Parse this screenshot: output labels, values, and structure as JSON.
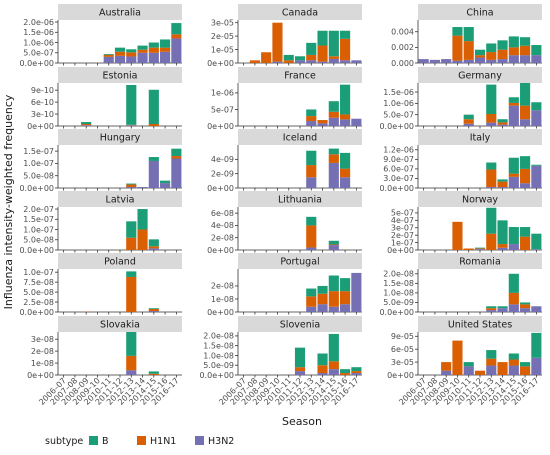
{
  "chart_data": {
    "type": "bar",
    "stacked": true,
    "layout": "facet-grid 6 rows x 3 columns, free y scales",
    "xlabel": "Season",
    "ylabel": "Influenza intensity-weighted frequency",
    "legend": {
      "title": "subtype",
      "position": "bottom-left",
      "items": [
        "B",
        "H1N1",
        "H3N2"
      ]
    },
    "colors": {
      "B": "#1b9e77",
      "H1N1": "#d95f02",
      "H3N2": "#7570b3",
      "strip": "#d9d9d9",
      "axis": "#333333"
    },
    "categories": [
      "2006–07",
      "2007–08",
      "2008–09",
      "2009–10",
      "2010–11",
      "2011–12",
      "2012–13",
      "2013–14",
      "2014–15",
      "2015–16",
      "2016–17"
    ],
    "stack_order": [
      "H3N2",
      "H1N1",
      "B"
    ],
    "panels": [
      {
        "country": "Australia",
        "yticks": [
          "0.0e+00",
          "5.0e-07",
          "1.0e-06",
          "1.5e-06",
          "2.0e-06"
        ],
        "ytick_values": [
          0,
          5e-07,
          1e-06,
          1.5e-06,
          2e-06
        ],
        "ylim": [
          0,
          2.1e-06
        ],
        "H3N2": [
          0,
          0,
          0,
          0,
          3e-07,
          3.5e-07,
          3.2e-07,
          5e-07,
          5e-07,
          5.5e-07,
          1.2e-06
        ],
        "H1N1": [
          0,
          0,
          0,
          0,
          1e-07,
          2e-07,
          2e-07,
          1.5e-07,
          2.5e-07,
          2e-07,
          2e-07
        ],
        "B": [
          0,
          0,
          0,
          0,
          4e-08,
          2e-07,
          1.5e-07,
          2e-07,
          2.5e-07,
          4e-07,
          5.5e-07
        ]
      },
      {
        "country": "Canada",
        "yticks": [
          "0e+00",
          "1e-05",
          "2e-05",
          "3e-05"
        ],
        "ytick_values": [
          0,
          1e-05,
          2e-05,
          3e-05
        ],
        "ylim": [
          0,
          3.2e-05
        ],
        "H3N2": [
          0,
          0,
          0,
          1e-06,
          0,
          2e-06,
          2e-06,
          1e-06,
          3e-06,
          2e-06,
          2e-06
        ],
        "H1N1": [
          0,
          2e-06,
          8e-06,
          2.9e-05,
          2e-06,
          0,
          4e-06,
          1.2e-05,
          2e-06,
          1.6e-05,
          0
        ],
        "B": [
          0,
          0,
          0,
          0,
          4e-06,
          3e-06,
          9e-06,
          1.1e-05,
          1.9e-05,
          6e-06,
          0
        ]
      },
      {
        "country": "China",
        "yticks": [
          "0.000",
          "0.002",
          "0.004"
        ],
        "ytick_values": [
          0,
          0.002,
          0.004
        ],
        "ylim": [
          0,
          0.0055
        ],
        "H3N2": [
          0.0005,
          0.0004,
          0.0005,
          0.0003,
          0.0004,
          0.0007,
          0.0004,
          0.0005,
          0.001,
          0.001,
          0.001
        ],
        "H1N1": [
          0,
          0,
          0,
          0.0032,
          0.0024,
          0.0003,
          0.001,
          0.0012,
          0.001,
          0.0012,
          0
        ],
        "B": [
          0,
          0,
          0,
          0.0011,
          0.0018,
          0.0007,
          0.0011,
          0.0012,
          0.0014,
          0.0011,
          0.0013
        ]
      },
      {
        "country": "Estonia",
        "yticks": [
          "0e+00",
          "3e-10",
          "6e-10",
          "9e-10"
        ],
        "ytick_values": [
          0,
          3e-10,
          6e-10,
          9e-10
        ],
        "ylim": [
          0,
          1.08e-09
        ],
        "H3N2": [
          0,
          0,
          2e-11,
          0,
          0,
          0,
          2e-11,
          0,
          0,
          0,
          0
        ],
        "H1N1": [
          0,
          0,
          3e-11,
          0,
          0,
          0,
          1e-11,
          0,
          5e-11,
          0,
          0
        ],
        "B": [
          0,
          0,
          5e-11,
          0,
          0,
          0,
          1e-09,
          0,
          8.6e-10,
          0,
          0
        ]
      },
      {
        "country": "France",
        "yticks": [
          "0e+00",
          "5e-07",
          "1e-06"
        ],
        "ytick_values": [
          0,
          5e-07,
          1e-06
        ],
        "ylim": [
          0,
          1.3e-06
        ],
        "H3N2": [
          0,
          0,
          0,
          0,
          0,
          0,
          1.5e-07,
          8e-08,
          2.5e-07,
          2e-07,
          2.2e-07
        ],
        "H1N1": [
          0,
          0,
          0,
          0,
          0,
          0,
          1.5e-07,
          1e-07,
          1.8e-07,
          1.5e-07,
          0
        ],
        "B": [
          0,
          0,
          0,
          0,
          0,
          0,
          2e-07,
          0,
          3.2e-07,
          9e-07,
          0
        ]
      },
      {
        "country": "Germany",
        "yticks": [
          "0.0e+00",
          "5.0e-07",
          "1.0e-06",
          "1.5e-06"
        ],
        "ytick_values": [
          0,
          5e-07,
          1e-06,
          1.5e-06
        ],
        "ylim": [
          0,
          1.9e-06
        ],
        "H3N2": [
          0,
          0,
          0,
          0,
          1e-07,
          0,
          1.5e-07,
          6e-08,
          9e-07,
          3e-07,
          7e-07
        ],
        "H1N1": [
          0,
          0,
          0,
          0,
          2e-07,
          0,
          3.8e-07,
          1e-07,
          1.2e-07,
          6e-07,
          0
        ],
        "B": [
          0,
          0,
          0,
          0,
          2e-07,
          0,
          1.3e-06,
          1.4e-07,
          2.5e-07,
          1e-06,
          3.5e-07
        ]
      },
      {
        "country": "Hungary",
        "yticks": [
          "0.0e+00",
          "5.0e-08",
          "1.0e-07",
          "1.5e-07"
        ],
        "ytick_values": [
          0,
          5e-08,
          1e-07,
          1.5e-07
        ],
        "ylim": [
          0,
          1.75e-07
        ],
        "H3N2": [
          0,
          0,
          0,
          0,
          0,
          0,
          4e-09,
          4e-09,
          1.1e-07,
          2e-08,
          1.2e-07
        ],
        "H1N1": [
          0,
          0,
          0,
          0,
          0,
          0,
          1e-08,
          0,
          0,
          0,
          1e-08
        ],
        "B": [
          0,
          0,
          0,
          0,
          0,
          0,
          4e-09,
          0,
          1.6e-08,
          1e-08,
          3e-08
        ]
      },
      {
        "country": "Iceland",
        "yticks": [
          "0e+00",
          "2e-09",
          "4e-09"
        ],
        "ytick_values": [
          0,
          2e-09,
          4e-09
        ],
        "ylim": [
          0,
          6e-09
        ],
        "H3N2": [
          0,
          0,
          0,
          0,
          0,
          0,
          1.5e-09,
          0,
          3.5e-09,
          1.5e-09,
          0
        ],
        "H1N1": [
          0,
          0,
          0,
          0,
          0,
          0,
          1.7e-09,
          0,
          1.2e-09,
          1.2e-09,
          0
        ],
        "B": [
          0,
          0,
          0,
          0,
          0,
          0,
          2e-09,
          0,
          8e-10,
          2.2e-09,
          0
        ]
      },
      {
        "country": "Italy",
        "yticks": [
          "0.0e+00",
          "3.0e-07",
          "6.0e-07",
          "9.0e-07",
          "1.2e-06"
        ],
        "ytick_values": [
          0,
          3e-07,
          6e-07,
          9e-07,
          1.2e-06
        ],
        "ylim": [
          0,
          1.35e-06
        ],
        "H3N2": [
          0,
          0,
          0,
          0,
          0,
          0,
          3e-08,
          3e-08,
          3.5e-07,
          1.5e-07,
          7e-07
        ],
        "H1N1": [
          0,
          0,
          0,
          0,
          0,
          0,
          5.5e-07,
          1.7e-07,
          1e-07,
          4.5e-07,
          0
        ],
        "B": [
          0,
          0,
          0,
          0,
          0,
          0,
          2.2e-07,
          7e-08,
          5e-07,
          4e-07,
          3e-08
        ]
      },
      {
        "country": "Latvia",
        "yticks": [
          "0.0e+00",
          "5.0e-08",
          "1.0e-07",
          "1.5e-07",
          "2.0e-07"
        ],
        "ytick_values": [
          0,
          5e-08,
          1e-07,
          1.5e-07,
          2e-07
        ],
        "ylim": [
          0,
          2.1e-07
        ],
        "H3N2": [
          0,
          0,
          0,
          0,
          0,
          0,
          0,
          0,
          8e-09,
          0,
          0
        ],
        "H1N1": [
          0,
          0,
          0,
          0,
          0,
          1e-09,
          6e-08,
          1e-07,
          1e-08,
          0,
          0
        ],
        "B": [
          0,
          0,
          0,
          0,
          0,
          1e-09,
          8e-08,
          1e-07,
          3.4e-08,
          0,
          0
        ]
      },
      {
        "country": "Lithuania",
        "yticks": [
          "0e+00",
          "2e-08",
          "4e-08",
          "6e-08"
        ],
        "ytick_values": [
          0,
          2e-08,
          4e-08,
          6e-08
        ],
        "ylim": [
          0,
          7e-08
        ],
        "H3N2": [
          0,
          0,
          0,
          0,
          0,
          0,
          4e-09,
          0,
          8e-09,
          0,
          0
        ],
        "H1N1": [
          0,
          0,
          0,
          0,
          0,
          0,
          3.6e-08,
          0,
          1e-09,
          0,
          0
        ],
        "B": [
          0,
          0,
          0,
          0,
          0,
          0,
          1.4e-08,
          0,
          6e-09,
          0,
          0
        ]
      },
      {
        "country": "Norway",
        "yticks": [
          "0e+00",
          "1e-07",
          "2e-07",
          "3e-07",
          "4e-07",
          "5e-07"
        ],
        "ytick_values": [
          0,
          1e-07,
          2e-07,
          3e-07,
          4e-07,
          5e-07
        ],
        "ylim": [
          0,
          5.8e-07
        ],
        "H3N2": [
          0,
          0,
          0,
          0,
          0,
          1.2e-08,
          0,
          3e-08,
          8e-08,
          0,
          1e-08
        ],
        "H1N1": [
          0,
          0,
          0,
          3.8e-07,
          2e-08,
          1e-08,
          2.2e-07,
          5e-08,
          0,
          1.8e-07,
          0
        ],
        "B": [
          0,
          0,
          0,
          0,
          0,
          1e-08,
          3.5e-07,
          3.2e-07,
          2.3e-07,
          1.3e-07,
          2.1e-07
        ]
      },
      {
        "country": "Poland",
        "yticks": [
          "0.0e+00",
          "2.5e-08",
          "5.0e-08",
          "7.5e-08",
          "1.0e-07"
        ],
        "ytick_values": [
          0,
          2.5e-08,
          5e-08,
          7.5e-08,
          1e-07
        ],
        "ylim": [
          0,
          1.08e-07
        ],
        "H3N2": [
          0,
          0,
          0,
          0,
          0,
          0,
          0,
          0,
          2.5e-09,
          0,
          0
        ],
        "H1N1": [
          0,
          0,
          5e-10,
          0,
          0,
          0,
          8.8e-08,
          0,
          5e-09,
          0,
          0
        ],
        "B": [
          0,
          0,
          0,
          0,
          0,
          0,
          1.4e-08,
          0,
          2e-09,
          0,
          0
        ]
      },
      {
        "country": "Portugal",
        "yticks": [
          "0e+00",
          "1e-08",
          "2e-08"
        ],
        "ytick_values": [
          0,
          1e-08,
          2e-08
        ],
        "ylim": [
          0,
          3.3e-08
        ],
        "H3N2": [
          0,
          0,
          0,
          0,
          0,
          0,
          4e-09,
          6e-09,
          4e-09,
          6e-09,
          3e-08
        ],
        "H1N1": [
          0,
          0,
          0,
          0,
          0,
          0,
          8e-09,
          8e-09,
          1.2e-08,
          1e-08,
          0
        ],
        "B": [
          0,
          0,
          0,
          0,
          0,
          0,
          6e-09,
          6e-09,
          1.2e-08,
          1e-08,
          0
        ]
      },
      {
        "country": "Romania",
        "yticks": [
          "0.0e+00",
          "5.0e-09",
          "1.0e-08",
          "1.5e-08",
          "2.0e-08"
        ],
        "ytick_values": [
          0,
          5e-09,
          1e-08,
          1.5e-08,
          2e-08
        ],
        "ylim": [
          0,
          2.25e-08
        ],
        "H3N2": [
          0,
          0,
          0,
          0,
          0,
          0,
          1e-09,
          2e-09,
          4e-09,
          2e-09,
          3e-09
        ],
        "H1N1": [
          0,
          0,
          0,
          0,
          0,
          0,
          1e-09,
          0,
          6e-09,
          2e-09,
          0
        ],
        "B": [
          0,
          0,
          0,
          0,
          0,
          0,
          1e-09,
          1e-09,
          1e-08,
          1e-09,
          0
        ]
      },
      {
        "country": "Slovakia",
        "yticks": [
          "0e+00",
          "1e-08",
          "2e-08",
          "3e-08"
        ],
        "ytick_values": [
          0,
          1e-08,
          2e-08,
          3e-08
        ],
        "ylim": [
          0,
          3.6e-08
        ],
        "H3N2": [
          0,
          0,
          0,
          0,
          0,
          0,
          4e-09,
          0,
          0,
          0,
          0
        ],
        "H1N1": [
          0,
          0,
          0,
          0,
          0,
          0,
          1.2e-08,
          0,
          1e-09,
          0,
          0
        ],
        "B": [
          0,
          0,
          0,
          0,
          0,
          0,
          2e-08,
          0,
          2e-09,
          0,
          0
        ]
      },
      {
        "country": "Slovenia",
        "yticks": [
          "0.0e+00",
          "5.0e-09",
          "1.0e-08",
          "1.5e-08",
          "2.0e-08"
        ],
        "ytick_values": [
          0,
          5e-09,
          1e-08,
          1.5e-08,
          2e-08
        ],
        "ylim": [
          0,
          2.2e-08
        ],
        "H3N2": [
          0,
          0,
          0,
          0,
          0,
          2e-09,
          0,
          1e-09,
          3e-09,
          0,
          1e-09
        ],
        "H1N1": [
          0,
          0,
          0,
          0,
          0,
          2e-09,
          0,
          4e-09,
          4e-09,
          1e-09,
          1e-09
        ],
        "B": [
          0,
          0,
          0,
          0,
          0,
          1e-08,
          0,
          6e-09,
          1.4e-08,
          2e-09,
          2e-09
        ]
      },
      {
        "country": "United States",
        "yticks": [
          "0e+00",
          "3e-05",
          "6e-05",
          "9e-05"
        ],
        "ytick_values": [
          0,
          3e-05,
          6e-05,
          9e-05
        ],
        "ylim": [
          0,
          0.0001
        ],
        "H3N2": [
          0,
          0,
          1e-05,
          0,
          2e-05,
          0,
          2.2e-05,
          0,
          2.2e-05,
          0,
          4e-05
        ],
        "H1N1": [
          0,
          0,
          2e-05,
          8e-05,
          0,
          1e-05,
          1.6e-05,
          3e-05,
          1.4e-05,
          2e-05,
          0
        ],
        "B": [
          0,
          0,
          0,
          0,
          1e-05,
          0,
          2e-05,
          0,
          1.4e-05,
          1e-05,
          5.8e-05
        ]
      }
    ]
  }
}
